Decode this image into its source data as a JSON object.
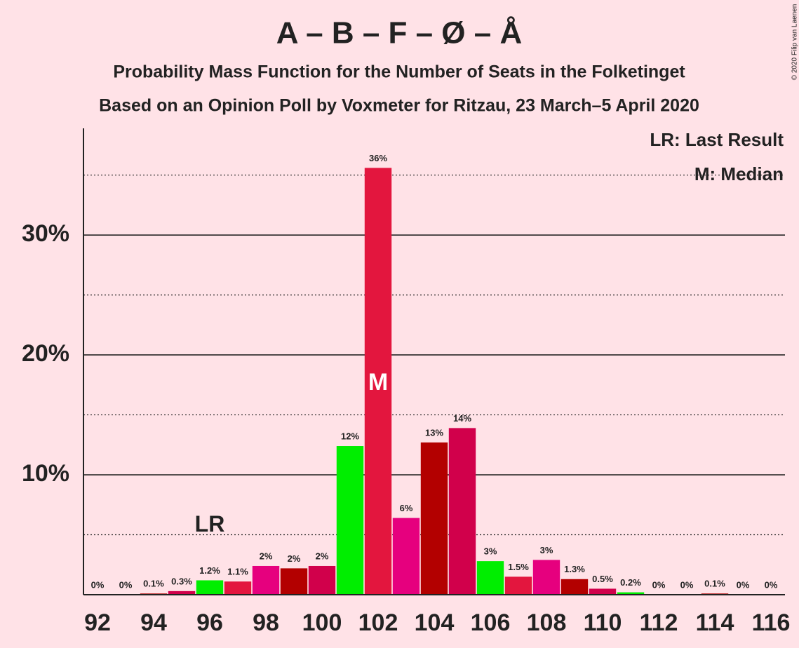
{
  "chart_data": {
    "type": "bar",
    "title": "A – B – F – Ø – Å",
    "subtitle": "Probability Mass Function for the Number of Seats in the Folketinget",
    "subtitle2": "Based on an Opinion Poll by Voxmeter for Ritzau, 23 March–5 April 2020",
    "copyright": "© 2020 Filip van Laenen",
    "legend_texts": [
      "LR: Last Result",
      "M: Median"
    ],
    "last_result": {
      "category": 96,
      "label": "LR"
    },
    "median": {
      "category": 102,
      "label": "M"
    },
    "categories": [
      92,
      null,
      94,
      null,
      96,
      null,
      98,
      null,
      100,
      null,
      102,
      null,
      104,
      null,
      106,
      null,
      108,
      null,
      110,
      null,
      112,
      null,
      114,
      null,
      116
    ],
    "seats": [
      92,
      93,
      94,
      95,
      96,
      97,
      98,
      99,
      100,
      101,
      102,
      103,
      104,
      105,
      106,
      107,
      108,
      109,
      110,
      111,
      112,
      113,
      114,
      115,
      116
    ],
    "values": [
      0,
      0,
      0.1,
      0.3,
      1.2,
      1.1,
      2.4,
      2.2,
      2.4,
      12.4,
      35.6,
      6.4,
      12.7,
      13.9,
      2.8,
      1.5,
      2.9,
      1.3,
      0.5,
      0.2,
      0,
      0,
      0.1,
      0,
      0
    ],
    "value_labels": [
      "0%",
      "0%",
      "0.1%",
      "0.3%",
      "1.2%",
      "1.1%",
      "2%",
      "2%",
      "2%",
      "12%",
      "36%",
      "6%",
      "13%",
      "14%",
      "3%",
      "1.5%",
      "3%",
      "1.3%",
      "0.5%",
      "0.2%",
      "0%",
      "0%",
      "0.1%",
      "0%",
      "0%"
    ],
    "colors": [
      "#e3163e",
      "#e6007e",
      "#b30000",
      "#d1004b",
      "#00ee00",
      "#e3163e",
      "#e6007e",
      "#b30000",
      "#d1004b",
      "#00ee00",
      "#e3163e",
      "#e6007e",
      "#b30000",
      "#d1004b",
      "#00ee00",
      "#e3163e",
      "#e6007e",
      "#b30000",
      "#d1004b",
      "#00ee00",
      "#e3163e",
      "#e6007e",
      "#b30000",
      "#d1004b",
      "#00ee00"
    ],
    "ylim": [
      0,
      38.9
    ],
    "yticks": [
      {
        "value": 10,
        "label": "10%"
      },
      {
        "value": 20,
        "label": "20%"
      },
      {
        "value": 30,
        "label": "30%"
      }
    ],
    "minor_yticks": [
      5,
      15,
      25,
      35
    ],
    "grid": true
  }
}
